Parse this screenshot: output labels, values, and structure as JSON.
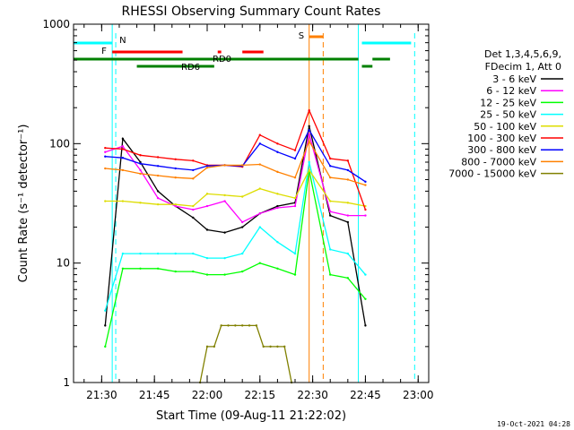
{
  "chart_data": {
    "type": "line",
    "title": "RHESSI Observing Summary Count Rates",
    "xlabel": "Start Time (09-Aug-11 21:22:02)",
    "ylabel": "Count Rate (s⁻¹ detector⁻¹)",
    "y_scale": "log",
    "ylim": [
      1,
      1000
    ],
    "xlim": [
      "21:22",
      "23:03"
    ],
    "x_ticks": [
      "21:30",
      "21:45",
      "22:00",
      "22:15",
      "22:30",
      "22:45",
      "23:00"
    ],
    "y_ticks": [
      "1",
      "10",
      "100",
      "1000"
    ],
    "timestamp": "19-Oct-2021 04:28",
    "legend_header": [
      "Det 1,3,4,5,6,9,",
      "FDecim 1, Att 0"
    ],
    "legend_position": "right",
    "grid": false,
    "series": [
      {
        "name": "3 - 6 keV",
        "color": "#000000",
        "x": [
          "21:31",
          "21:36",
          "21:41",
          "21:46",
          "21:51",
          "21:56",
          "22:00",
          "22:05",
          "22:10",
          "22:15",
          "22:20",
          "22:25",
          "22:29",
          "22:35",
          "22:40",
          "22:45"
        ],
        "values": [
          3,
          110,
          70,
          40,
          30,
          24,
          19,
          18,
          20,
          26,
          30,
          32,
          140,
          25,
          22,
          3
        ]
      },
      {
        "name": "6 - 12 keV",
        "color": "#ff00ff",
        "x": [
          "21:31",
          "21:36",
          "21:41",
          "21:46",
          "21:51",
          "21:56",
          "22:00",
          "22:05",
          "22:10",
          "22:15",
          "22:20",
          "22:25",
          "22:29",
          "22:35",
          "22:40",
          "22:45"
        ],
        "values": [
          85,
          95,
          60,
          35,
          30,
          28,
          30,
          33,
          22,
          26,
          29,
          30,
          120,
          27,
          25,
          25
        ]
      },
      {
        "name": "12 - 25 keV",
        "color": "#00ff00",
        "x": [
          "21:31",
          "21:36",
          "21:41",
          "21:46",
          "21:51",
          "21:56",
          "22:00",
          "22:05",
          "22:10",
          "22:15",
          "22:20",
          "22:25",
          "22:29",
          "22:35",
          "22:40",
          "22:45"
        ],
        "values": [
          2,
          9,
          9,
          9,
          8.5,
          8.5,
          8,
          8,
          8.5,
          10,
          9,
          8,
          60,
          8,
          7.5,
          5
        ]
      },
      {
        "name": "25 - 50 keV",
        "color": "#00ffff",
        "x": [
          "21:31",
          "21:36",
          "21:41",
          "21:46",
          "21:51",
          "21:56",
          "22:00",
          "22:05",
          "22:10",
          "22:15",
          "22:20",
          "22:25",
          "22:29",
          "22:35",
          "22:40",
          "22:45"
        ],
        "values": [
          4,
          12,
          12,
          12,
          12,
          12,
          11,
          11,
          12,
          20,
          15,
          12,
          70,
          13,
          12,
          8
        ]
      },
      {
        "name": "50 - 100 keV",
        "color": "#dddd00",
        "x": [
          "21:31",
          "21:36",
          "21:41",
          "21:46",
          "21:51",
          "21:56",
          "22:00",
          "22:05",
          "22:10",
          "22:15",
          "22:20",
          "22:25",
          "22:29",
          "22:35",
          "22:40",
          "22:45"
        ],
        "values": [
          33,
          33,
          32,
          31,
          31,
          30,
          38,
          37,
          36,
          42,
          38,
          35,
          60,
          33,
          32,
          30
        ]
      },
      {
        "name": "100 - 300 keV",
        "color": "#ff0000",
        "x": [
          "21:31",
          "21:36",
          "21:41",
          "21:46",
          "21:51",
          "21:56",
          "22:00",
          "22:05",
          "22:10",
          "22:15",
          "22:20",
          "22:25",
          "22:29",
          "22:35",
          "22:40",
          "22:45"
        ],
        "values": [
          92,
          90,
          80,
          77,
          74,
          72,
          66,
          66,
          64,
          118,
          100,
          88,
          190,
          75,
          72,
          28
        ]
      },
      {
        "name": "300 - 800 keV",
        "color": "#0000ff",
        "x": [
          "21:31",
          "21:36",
          "21:41",
          "21:46",
          "21:51",
          "21:56",
          "22:00",
          "22:05",
          "22:10",
          "22:15",
          "22:20",
          "22:25",
          "22:29",
          "22:35",
          "22:40",
          "22:45"
        ],
        "values": [
          78,
          76,
          68,
          65,
          62,
          60,
          65,
          66,
          65,
          100,
          85,
          75,
          130,
          65,
          60,
          48
        ]
      },
      {
        "name": "800 - 7000 keV",
        "color": "#ff8000",
        "x": [
          "21:31",
          "21:36",
          "21:41",
          "21:46",
          "21:51",
          "21:56",
          "22:00",
          "22:05",
          "22:10",
          "22:15",
          "22:20",
          "22:25",
          "22:29",
          "22:35",
          "22:40",
          "22:45"
        ],
        "values": [
          62,
          60,
          56,
          54,
          52,
          51,
          63,
          66,
          66,
          67,
          58,
          52,
          105,
          52,
          50,
          45
        ]
      },
      {
        "name": "7000 - 15000 keV",
        "color": "#808000",
        "x": [
          "21:58",
          "22:00",
          "22:02",
          "22:04",
          "22:06",
          "22:08",
          "22:10",
          "22:12",
          "22:14",
          "22:16",
          "22:18",
          "22:20",
          "22:22",
          "22:24"
        ],
        "values": [
          1,
          2,
          2,
          3,
          3,
          3,
          3,
          3,
          3,
          2,
          2,
          2,
          2,
          1
        ]
      }
    ],
    "flags": [
      {
        "label": "N",
        "color": "#00ffff",
        "segments": [
          [
            "21:22",
            "21:33"
          ],
          [
            "22:44",
            "22:58"
          ]
        ]
      },
      {
        "label": "F",
        "color": "#ff0000",
        "segments": [
          [
            "21:33",
            "21:53"
          ],
          [
            "22:03",
            "22:04"
          ],
          [
            "22:10",
            "22:16"
          ]
        ]
      },
      {
        "label": "S",
        "color": "#ff8000",
        "segments": [
          [
            "22:29",
            "22:33"
          ]
        ]
      },
      {
        "label": "RD0",
        "color": "#008000",
        "segments": [
          [
            "21:22",
            "22:43"
          ],
          [
            "22:47",
            "22:52"
          ]
        ]
      },
      {
        "label": "RD6",
        "color": "#008000",
        "segments": [
          [
            "21:40",
            "22:02"
          ],
          [
            "22:44",
            "22:47"
          ]
        ]
      }
    ],
    "markers": [
      {
        "time": "21:34",
        "color": "#00ffff"
      },
      {
        "time": "22:33",
        "color": "#ff8000"
      },
      {
        "time": "22:59",
        "color": "#00ffff"
      }
    ],
    "vlines": [
      {
        "time": "21:33",
        "color": "#00ffff"
      },
      {
        "time": "22:29",
        "color": "#ff8000"
      },
      {
        "time": "22:43",
        "color": "#00ffff"
      }
    ]
  }
}
